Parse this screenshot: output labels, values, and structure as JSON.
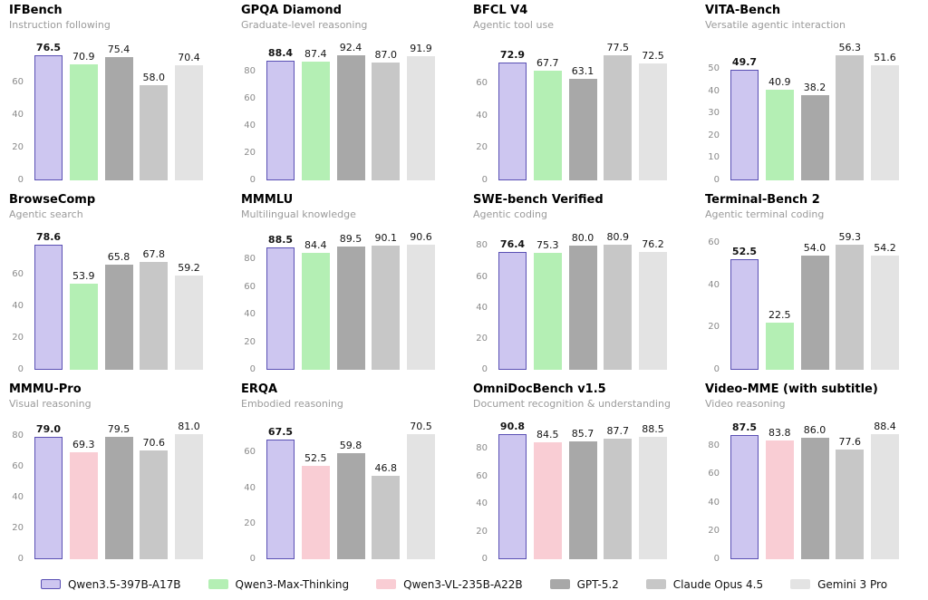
{
  "page": {
    "background": "#ffffff"
  },
  "models": {
    "Qwen3.5-397B-A17B": {
      "fill": "#cdc6f0",
      "edge": "#5a50b4"
    },
    "Qwen3-Max-Thinking": {
      "fill": "#b4efb4"
    },
    "Qwen3-VL-235B-A22B": {
      "fill": "#f9cdd4"
    },
    "GPT-5.2": {
      "fill": "#a8a8a8"
    },
    "Claude Opus 4.5": {
      "fill": "#c7c7c7"
    },
    "Gemini 3 Pro": {
      "fill": "#e3e3e3"
    }
  },
  "legend": {
    "items": [
      {
        "label": "Qwen3.5-397B-A17B"
      },
      {
        "label": "Qwen3-Max-Thinking"
      },
      {
        "label": "Qwen3-VL-235B-A22B"
      },
      {
        "label": "GPT-5.2"
      },
      {
        "label": "Claude Opus 4.5"
      },
      {
        "label": "Gemini 3 Pro"
      }
    ]
  },
  "chart_data": [
    {
      "type": "bar",
      "title": "IFBench",
      "subtitle": "Instruction following",
      "categories": [
        "Qwen3.5-397B-A17B",
        "Qwen3-Max-Thinking",
        "GPT-5.2",
        "Claude Opus 4.5",
        "Gemini 3 Pro"
      ],
      "values": [
        76.5,
        70.9,
        75.4,
        58.0,
        70.4
      ],
      "yticks": [
        0,
        20,
        40,
        60
      ],
      "ylim": [
        0,
        80.3
      ],
      "grid": false,
      "emphasis_index": 0
    },
    {
      "type": "bar",
      "title": "GPQA Diamond",
      "subtitle": "Graduate-level reasoning",
      "categories": [
        "Qwen3.5-397B-A17B",
        "Qwen3-Max-Thinking",
        "GPT-5.2",
        "Claude Opus 4.5",
        "Gemini 3 Pro"
      ],
      "values": [
        88.4,
        87.4,
        92.4,
        87.0,
        91.9
      ],
      "yticks": [
        0,
        20,
        40,
        60,
        80
      ],
      "ylim": [
        0,
        97.0
      ],
      "grid": false,
      "emphasis_index": 0
    },
    {
      "type": "bar",
      "title": "BFCL V4",
      "subtitle": "Agentic tool use",
      "categories": [
        "Qwen3.5-397B-A17B",
        "Qwen3-Max-Thinking",
        "GPT-5.2",
        "Claude Opus 4.5",
        "Gemini 3 Pro"
      ],
      "values": [
        72.9,
        67.7,
        63.1,
        77.5,
        72.5
      ],
      "yticks": [
        0,
        20,
        40,
        60
      ],
      "ylim": [
        0,
        81.4
      ],
      "grid": false,
      "emphasis_index": 0
    },
    {
      "type": "bar",
      "title": "VITA-Bench",
      "subtitle": "Versatile agentic interaction",
      "categories": [
        "Qwen3.5-397B-A17B",
        "Qwen3-Max-Thinking",
        "GPT-5.2",
        "Claude Opus 4.5",
        "Gemini 3 Pro"
      ],
      "values": [
        49.7,
        40.9,
        38.2,
        56.3,
        51.6
      ],
      "yticks": [
        0,
        10,
        20,
        30,
        40,
        50
      ],
      "ylim": [
        0,
        59.1
      ],
      "grid": false,
      "emphasis_index": 0
    },
    {
      "type": "bar",
      "title": "BrowseComp",
      "subtitle": "Agentic search",
      "categories": [
        "Qwen3.5-397B-A17B",
        "Qwen3-Max-Thinking",
        "GPT-5.2",
        "Claude Opus 4.5",
        "Gemini 3 Pro"
      ],
      "values": [
        78.6,
        53.9,
        65.8,
        67.8,
        59.2
      ],
      "yticks": [
        0,
        20,
        40,
        60
      ],
      "ylim": [
        0,
        82.5
      ],
      "grid": false,
      "emphasis_index": 0
    },
    {
      "type": "bar",
      "title": "MMMLU",
      "subtitle": "Multilingual knowledge",
      "categories": [
        "Qwen3.5-397B-A17B",
        "Qwen3-Max-Thinking",
        "GPT-5.2",
        "Claude Opus 4.5",
        "Gemini 3 Pro"
      ],
      "values": [
        88.5,
        84.4,
        89.5,
        90.1,
        90.6
      ],
      "yticks": [
        0,
        20,
        40,
        60,
        80
      ],
      "ylim": [
        0,
        95.1
      ],
      "grid": false,
      "emphasis_index": 0
    },
    {
      "type": "bar",
      "title": "SWE-bench Verified",
      "subtitle": "Agentic coding",
      "categories": [
        "Qwen3.5-397B-A17B",
        "Qwen3-Max-Thinking",
        "GPT-5.2",
        "Claude Opus 4.5",
        "Gemini 3 Pro"
      ],
      "values": [
        76.4,
        75.3,
        80.0,
        80.9,
        76.2
      ],
      "yticks": [
        0,
        20,
        40,
        60,
        80
      ],
      "ylim": [
        0,
        84.9
      ],
      "grid": false,
      "emphasis_index": 0
    },
    {
      "type": "bar",
      "title": "Terminal-Bench 2",
      "subtitle": "Agentic terminal coding",
      "categories": [
        "Qwen3.5-397B-A17B",
        "Qwen3-Max-Thinking",
        "GPT-5.2",
        "Claude Opus 4.5",
        "Gemini 3 Pro"
      ],
      "values": [
        52.5,
        22.5,
        54.0,
        59.3,
        54.2
      ],
      "yticks": [
        0,
        20,
        40,
        60
      ],
      "ylim": [
        0,
        62.3
      ],
      "grid": false,
      "emphasis_index": 0
    },
    {
      "type": "bar",
      "title": "MMMU-Pro",
      "subtitle": "Visual reasoning",
      "categories": [
        "Qwen3.5-397B-A17B",
        "Qwen3-VL-235B-A22B",
        "GPT-5.2",
        "Claude Opus 4.5",
        "Gemini 3 Pro"
      ],
      "values": [
        79.0,
        69.3,
        79.5,
        70.6,
        81.0
      ],
      "yticks": [
        0,
        20,
        40,
        60,
        80
      ],
      "ylim": [
        0,
        85.1
      ],
      "grid": false,
      "emphasis_index": 0
    },
    {
      "type": "bar",
      "title": "ERQA",
      "subtitle": "Embodied reasoning",
      "categories": [
        "Qwen3.5-397B-A17B",
        "Qwen3-VL-235B-A22B",
        "GPT-5.2",
        "Claude Opus 4.5",
        "Gemini 3 Pro"
      ],
      "values": [
        67.5,
        52.5,
        59.8,
        46.8,
        70.5
      ],
      "yticks": [
        0,
        20,
        40,
        60
      ],
      "ylim": [
        0,
        74.0
      ],
      "grid": false,
      "emphasis_index": 0
    },
    {
      "type": "bar",
      "title": "OmniDocBench v1.5",
      "subtitle": "Document recognition & understanding",
      "categories": [
        "Qwen3.5-397B-A17B",
        "Qwen3-VL-235B-A22B",
        "GPT-5.2",
        "Claude Opus 4.5",
        "Gemini 3 Pro"
      ],
      "values": [
        90.8,
        84.5,
        85.7,
        87.7,
        88.5
      ],
      "yticks": [
        0,
        20,
        40,
        60,
        80
      ],
      "ylim": [
        0,
        95.3
      ],
      "grid": false,
      "emphasis_index": 0
    },
    {
      "type": "bar",
      "title": "Video-MME (with subtitle)",
      "subtitle": "Video reasoning",
      "categories": [
        "Qwen3.5-397B-A17B",
        "Qwen3-VL-235B-A22B",
        "GPT-5.2",
        "Claude Opus 4.5",
        "Gemini 3 Pro"
      ],
      "values": [
        87.5,
        83.8,
        86.0,
        77.6,
        88.4
      ],
      "yticks": [
        0,
        20,
        40,
        60,
        80
      ],
      "ylim": [
        0,
        92.8
      ],
      "grid": false,
      "emphasis_index": 0
    }
  ]
}
